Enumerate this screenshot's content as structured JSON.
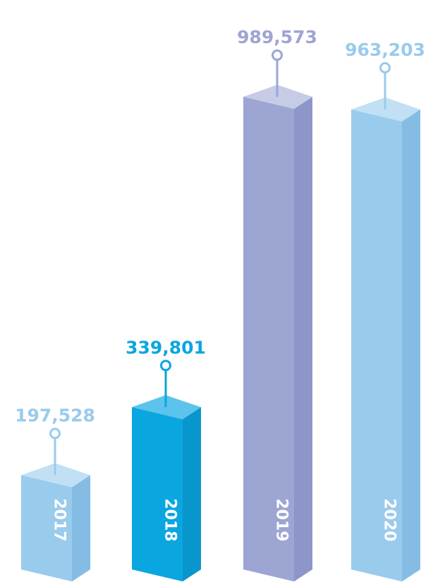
{
  "chart_data": {
    "type": "bar",
    "categories": [
      "2017",
      "2018",
      "2019",
      "2020"
    ],
    "values": [
      197528,
      339801,
      989573,
      963203
    ],
    "value_labels": [
      "197,528",
      "339,801",
      "989,573",
      "963,203"
    ],
    "title": "",
    "xlabel": "",
    "ylabel": "",
    "ylim": [
      0,
      1000000
    ],
    "grid": false,
    "legend": "none",
    "colors": [
      {
        "face": "#99cbec",
        "top": "#c2e0f4",
        "side": "#85bce3",
        "label": "#99cbec"
      },
      {
        "face": "#0aa6e0",
        "top": "#5cc3ec",
        "side": "#0996cc",
        "label": "#0aa6e0"
      },
      {
        "face": "#9da5d3",
        "top": "#c6cbe6",
        "side": "#8d96c9",
        "label": "#9da5d3"
      },
      {
        "face": "#99cbec",
        "top": "#c2e0f4",
        "side": "#85bce3",
        "label": "#99cbec"
      }
    ]
  }
}
